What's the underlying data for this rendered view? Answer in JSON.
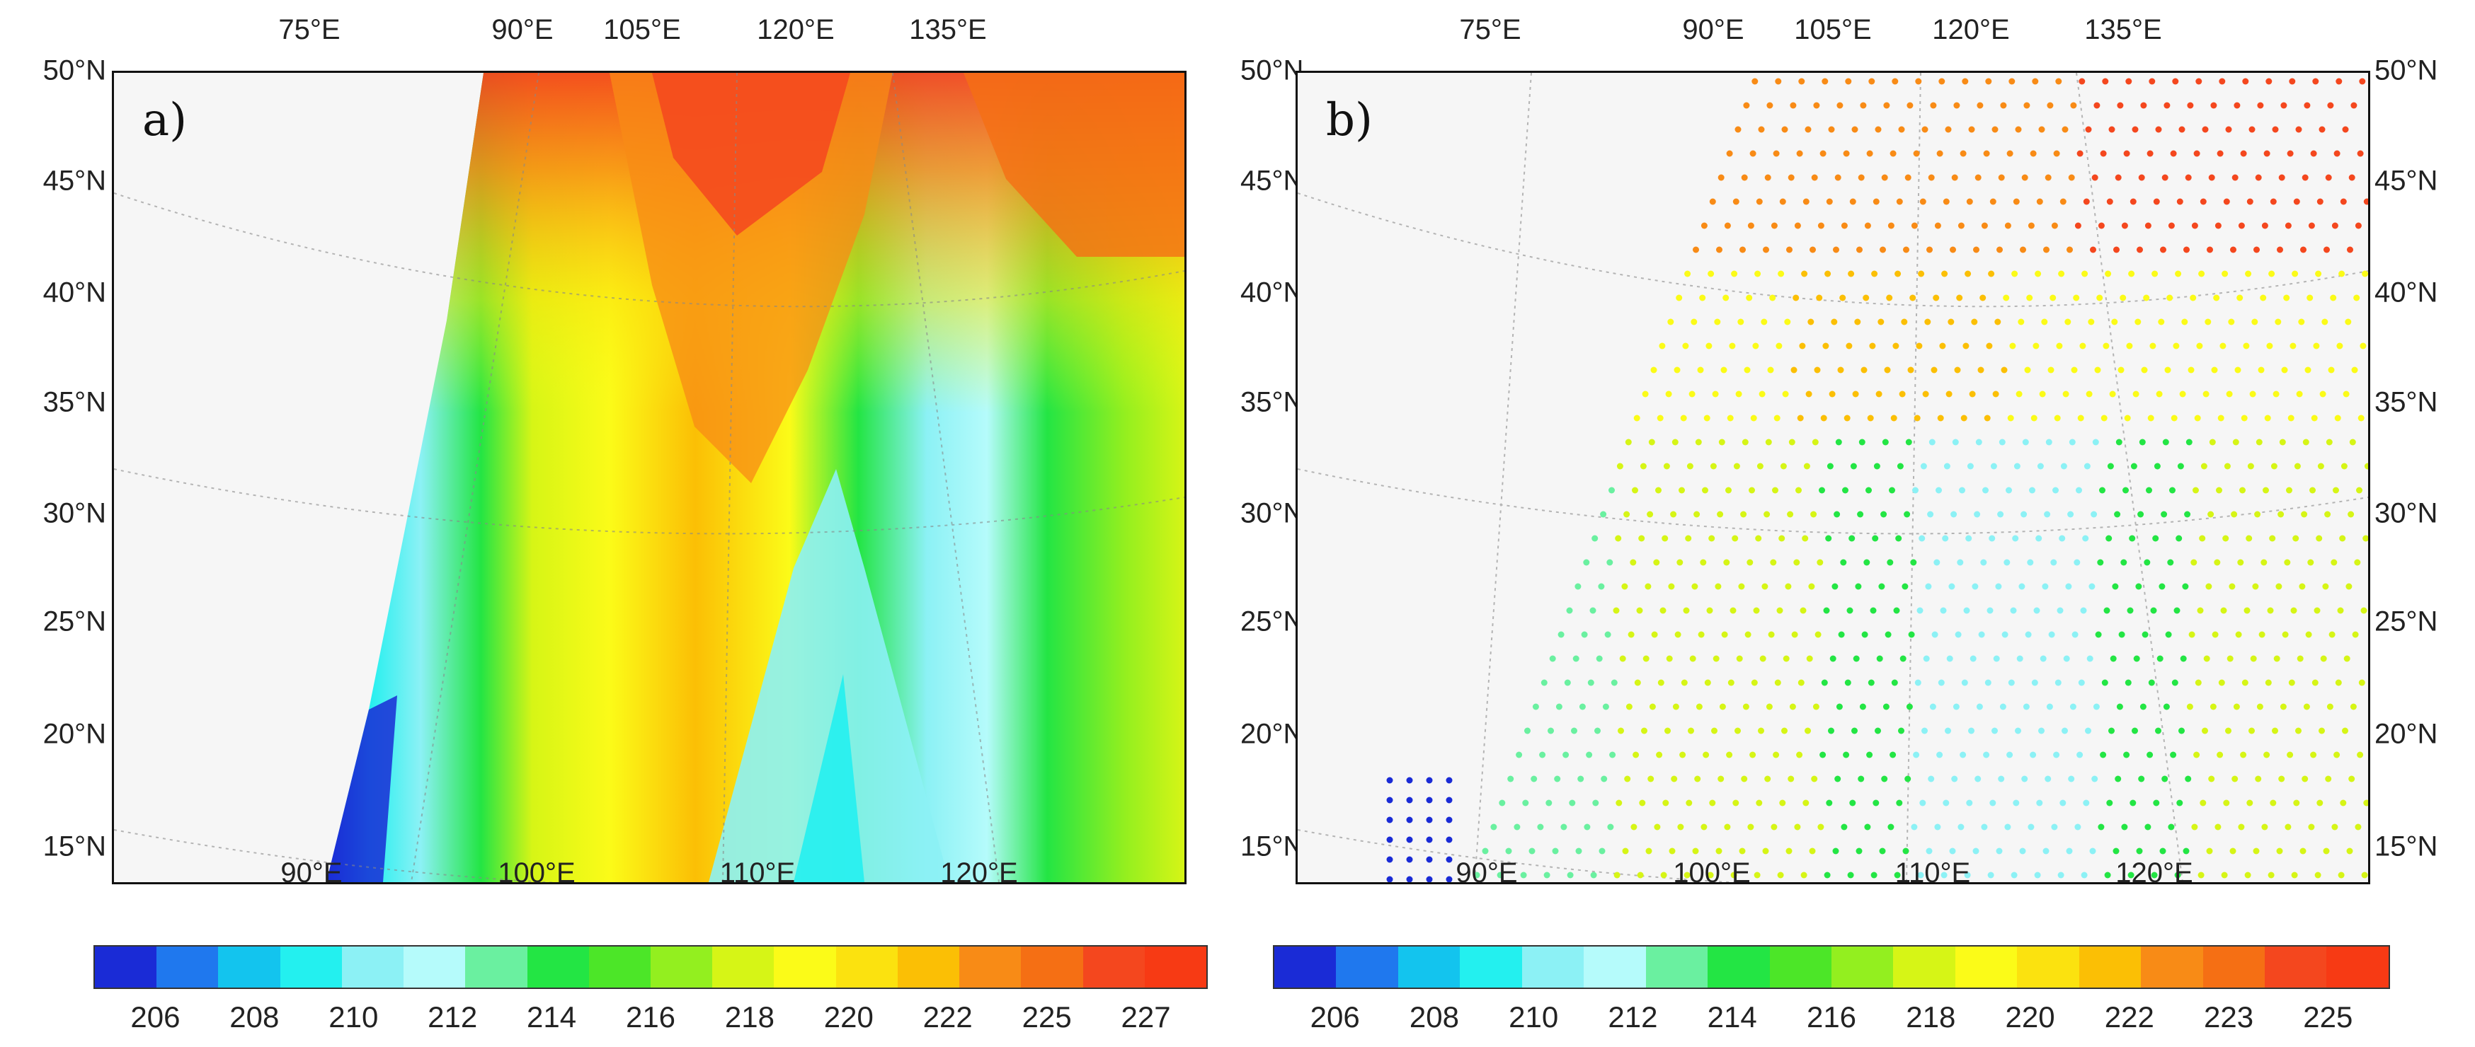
{
  "panels": [
    {
      "label": "a)",
      "top_lon_labels": [
        "75°E",
        "90°E",
        "105°E",
        "120°E",
        "135°E"
      ],
      "bottom_lon_labels": [
        "90°E",
        "100°E",
        "110°E",
        "120°E"
      ],
      "lat_labels": [
        "50°N",
        "45°N",
        "40°N",
        "35°N",
        "30°N",
        "25°N",
        "20°N",
        "15°N"
      ],
      "lat_label_side": "left",
      "colorbar": {
        "colors": [
          "#1a2bd6",
          "#1f78ee",
          "#13c4ee",
          "#23f0ef",
          "#8cf1f5",
          "#b5fbfb",
          "#6af0a0",
          "#23e544",
          "#4ce628",
          "#93ef1f",
          "#d6f516",
          "#fbfb18",
          "#fbe20f",
          "#fbbf05",
          "#f88b16",
          "#f56f14",
          "#f4471e",
          "#f73a14"
        ],
        "tick_labels": [
          "206",
          "208",
          "210",
          "212",
          "214",
          "216",
          "218",
          "220",
          "222",
          "225",
          "227"
        ]
      }
    },
    {
      "label": "b)",
      "top_lon_labels": [
        "75°E",
        "90°E",
        "105°E",
        "120°E",
        "135°E"
      ],
      "bottom_lon_labels": [
        "90°E",
        "100°E",
        "110°E",
        "120°E"
      ],
      "lat_labels": [
        "50°N",
        "45°N",
        "40°N",
        "35°N",
        "30°N",
        "25°N",
        "20°N",
        "15°N"
      ],
      "lat_label_side": "both",
      "colorbar": {
        "colors": [
          "#1a2bd6",
          "#1f78ee",
          "#13c4ee",
          "#23f0ef",
          "#8cf1f5",
          "#b5fbfb",
          "#6af0a0",
          "#23e544",
          "#4ce628",
          "#93ef1f",
          "#d6f516",
          "#fbfb18",
          "#fbe20f",
          "#fbbf05",
          "#f88b16",
          "#f56f14",
          "#f4471e",
          "#f73a14"
        ],
        "tick_labels": [
          "206",
          "208",
          "210",
          "212",
          "214",
          "216",
          "218",
          "220",
          "222",
          "223",
          "225"
        ]
      }
    }
  ]
}
